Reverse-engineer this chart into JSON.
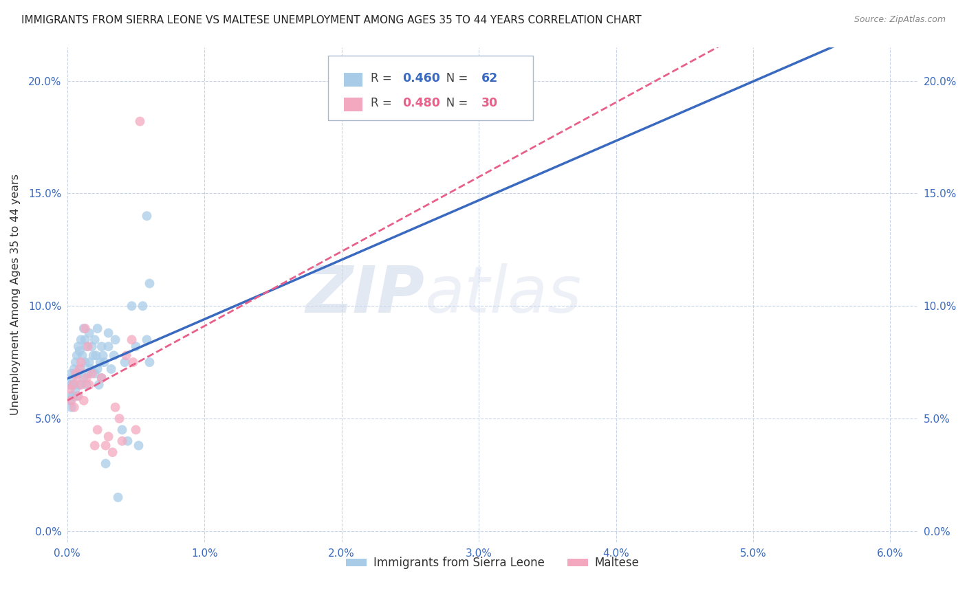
{
  "title": "IMMIGRANTS FROM SIERRA LEONE VS MALTESE UNEMPLOYMENT AMONG AGES 35 TO 44 YEARS CORRELATION CHART",
  "source": "Source: ZipAtlas.com",
  "ylabel": "Unemployment Among Ages 35 to 44 years",
  "xlim": [
    0.0,
    0.062
  ],
  "ylim": [
    -0.005,
    0.215
  ],
  "xticks": [
    0.0,
    0.01,
    0.02,
    0.03,
    0.04,
    0.05,
    0.06
  ],
  "xtick_labels": [
    "0.0%",
    "1.0%",
    "2.0%",
    "3.0%",
    "4.0%",
    "5.0%",
    "6.0%"
  ],
  "yticks": [
    0.0,
    0.05,
    0.1,
    0.15,
    0.2
  ],
  "ytick_labels": [
    "0.0%",
    "5.0%",
    "10.0%",
    "15.0%",
    "20.0%"
  ],
  "series1_label": "Immigrants from Sierra Leone",
  "series1_color": "#a8cce8",
  "series1_R": "0.460",
  "series1_N": "62",
  "series2_label": "Maltese",
  "series2_color": "#f4a8c0",
  "series2_R": "0.480",
  "series2_N": "30",
  "series1_x": [
    0.0001,
    0.0002,
    0.0002,
    0.0003,
    0.0003,
    0.0003,
    0.0004,
    0.0004,
    0.0005,
    0.0005,
    0.0006,
    0.0006,
    0.0007,
    0.0007,
    0.0008,
    0.0008,
    0.0009,
    0.0009,
    0.001,
    0.001,
    0.0011,
    0.0012,
    0.0012,
    0.0013,
    0.0013,
    0.0014,
    0.0014,
    0.0015,
    0.0016,
    0.0016,
    0.0017,
    0.0018,
    0.0019,
    0.002,
    0.002,
    0.0021,
    0.0022,
    0.0022,
    0.0023,
    0.0024,
    0.0025,
    0.0025,
    0.0026,
    0.0027,
    0.003,
    0.003,
    0.0032,
    0.0034,
    0.0035,
    0.004,
    0.0042,
    0.0044,
    0.005,
    0.0052,
    0.0055,
    0.0058,
    0.006,
    0.006,
    0.0037,
    0.0028,
    0.0047,
    0.0058
  ],
  "series1_y": [
    0.065,
    0.06,
    0.058,
    0.07,
    0.065,
    0.055,
    0.068,
    0.06,
    0.072,
    0.065,
    0.075,
    0.063,
    0.078,
    0.06,
    0.082,
    0.07,
    0.08,
    0.065,
    0.085,
    0.072,
    0.078,
    0.09,
    0.068,
    0.085,
    0.075,
    0.082,
    0.065,
    0.07,
    0.088,
    0.075,
    0.072,
    0.082,
    0.078,
    0.085,
    0.07,
    0.078,
    0.09,
    0.072,
    0.065,
    0.075,
    0.082,
    0.068,
    0.078,
    0.075,
    0.088,
    0.082,
    0.072,
    0.078,
    0.085,
    0.045,
    0.075,
    0.04,
    0.082,
    0.038,
    0.1,
    0.14,
    0.11,
    0.075,
    0.015,
    0.03,
    0.1,
    0.085
  ],
  "series2_x": [
    0.0002,
    0.0003,
    0.0004,
    0.0005,
    0.0006,
    0.0007,
    0.0008,
    0.0009,
    0.001,
    0.001,
    0.0012,
    0.0013,
    0.0014,
    0.0015,
    0.0016,
    0.0018,
    0.002,
    0.0022,
    0.0025,
    0.0028,
    0.003,
    0.0033,
    0.0035,
    0.0038,
    0.004,
    0.0043,
    0.0047,
    0.005,
    0.0053,
    0.0048
  ],
  "series2_y": [
    0.063,
    0.058,
    0.065,
    0.055,
    0.07,
    0.068,
    0.06,
    0.072,
    0.065,
    0.075,
    0.058,
    0.09,
    0.068,
    0.082,
    0.065,
    0.07,
    0.038,
    0.045,
    0.068,
    0.038,
    0.042,
    0.035,
    0.055,
    0.05,
    0.04,
    0.078,
    0.085,
    0.045,
    0.182,
    0.075
  ],
  "background_color": "#ffffff",
  "grid_color": "#c8d4e8",
  "watermark": "ZIPatlas",
  "trendline1_color": "#3a6abf",
  "trendline2_color": "#e8608a",
  "trendline1_intercept": 0.046,
  "trendline1_slope": 1.05,
  "trendline2_intercept": 0.038,
  "trendline2_slope": 1.25
}
